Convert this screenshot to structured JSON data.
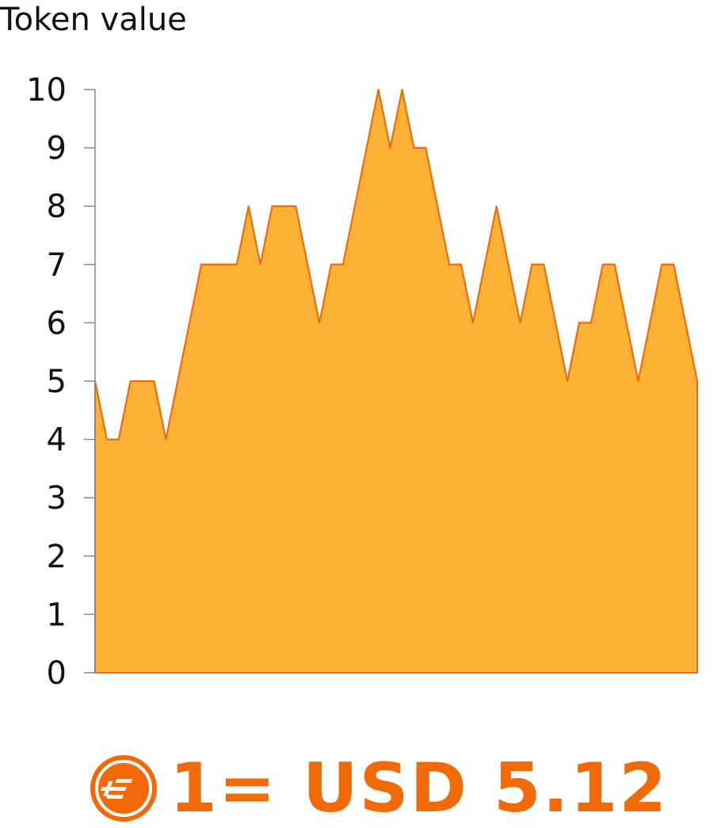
{
  "chart_data": {
    "type": "area",
    "ylabel": "Token value",
    "ylim": [
      0,
      10
    ],
    "yticks": [
      "0",
      "1",
      "2",
      "3",
      "4",
      "5",
      "6",
      "7",
      "8",
      "9",
      "10"
    ],
    "grid": false,
    "x": [
      0,
      1,
      2,
      3,
      4,
      5,
      6,
      7,
      8,
      9,
      10,
      11,
      12,
      13,
      14,
      15,
      16,
      17,
      18,
      19,
      20,
      21,
      22,
      23,
      24,
      25,
      26,
      27,
      28,
      29,
      30,
      31,
      32,
      33,
      34,
      35,
      36,
      37,
      38,
      39,
      40,
      41,
      42,
      43,
      44,
      45,
      46,
      47,
      48,
      49,
      50,
      51
    ],
    "series": [
      {
        "values": [
          5,
          4,
          4,
          5,
          5,
          5,
          4,
          5,
          6,
          7,
          7,
          7,
          7,
          8,
          7,
          8,
          8,
          8,
          7,
          6,
          7,
          7,
          8,
          9,
          10,
          9,
          10,
          9,
          9,
          8,
          7,
          7,
          6,
          7,
          8,
          7,
          6,
          7,
          7,
          6,
          5,
          6,
          6,
          7,
          7,
          6,
          5,
          6,
          7,
          7,
          6,
          5
        ],
        "color": "#FDB236",
        "line_color": "#F26A08"
      }
    ]
  },
  "footer": {
    "price_text": "1= USD 5.12",
    "icon": "token-coin-icon",
    "color": "#F26A08"
  }
}
